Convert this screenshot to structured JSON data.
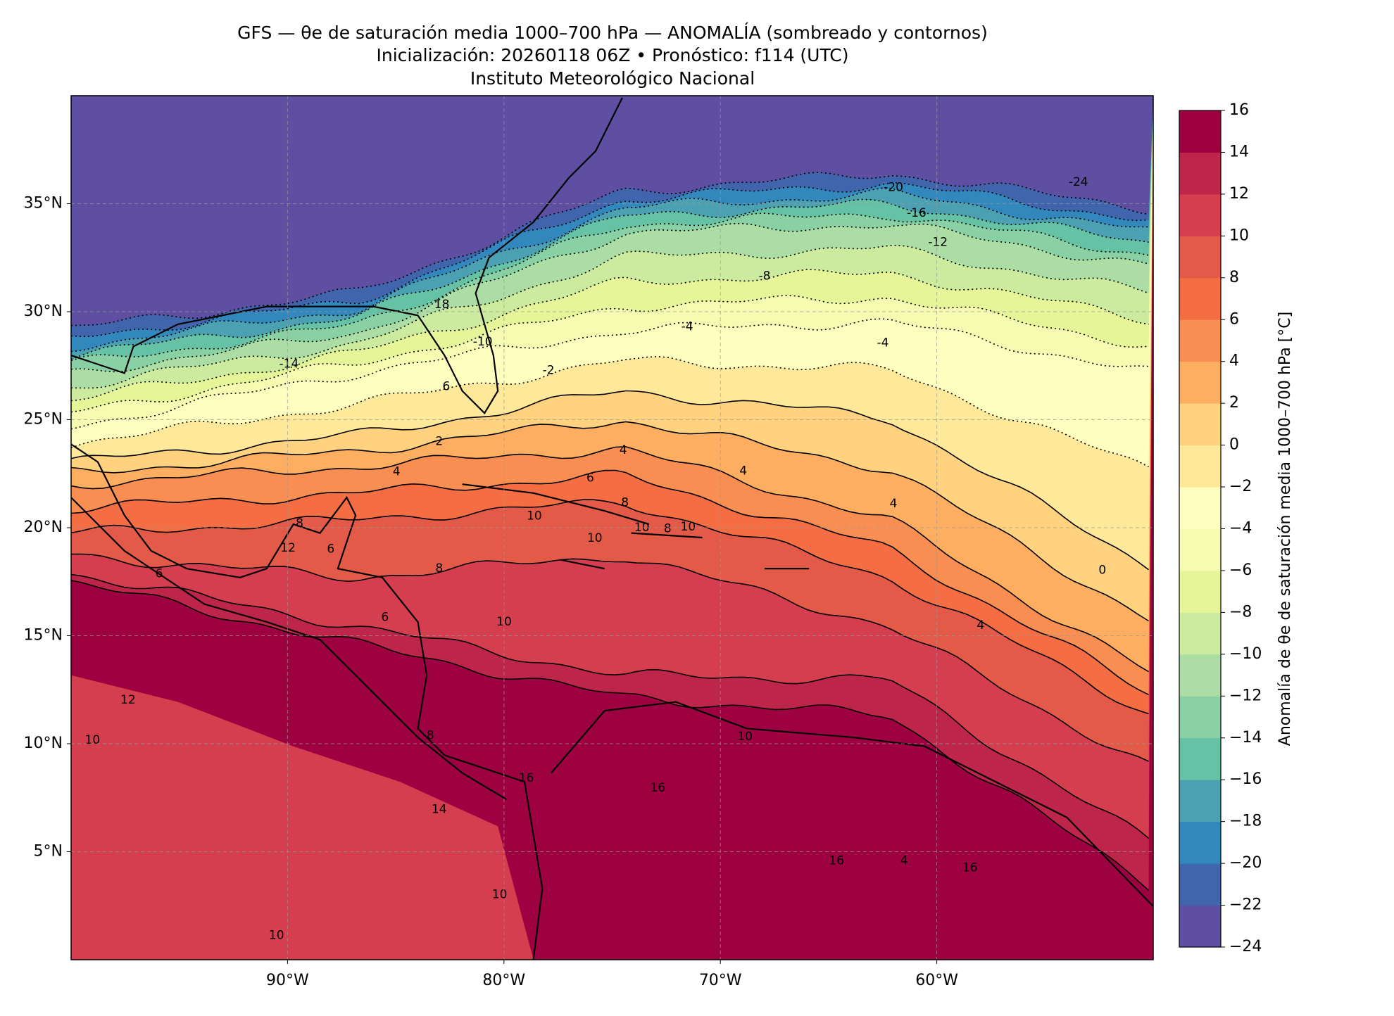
{
  "chart_data": {
    "type": "filled-contour-map",
    "title": "GFS — θe de saturación media 1000–700 hPa — ANOMALÍA (sombreado y contornos)",
    "subtitle": "Inicialización: 20260118 06Z   •   Pronóstico: f114 (UTC)",
    "source": "Instituto Meteorológico Nacional",
    "xlim": [
      -100,
      -50
    ],
    "ylim": [
      0,
      40
    ],
    "xticks": [
      {
        "value": -90,
        "label": "90°W"
      },
      {
        "value": -80,
        "label": "80°W"
      },
      {
        "value": -70,
        "label": "70°W"
      },
      {
        "value": -60,
        "label": "60°W"
      }
    ],
    "yticks": [
      {
        "value": 5,
        "label": "5°N"
      },
      {
        "value": 10,
        "label": "10°N"
      },
      {
        "value": 15,
        "label": "15°N"
      },
      {
        "value": 20,
        "label": "20°N"
      },
      {
        "value": 25,
        "label": "25°N"
      },
      {
        "value": 30,
        "label": "30°N"
      },
      {
        "value": 35,
        "label": "35°N"
      }
    ],
    "grid": true,
    "colorbar": {
      "label": "Anomalía de θe de saturación media 1000–700 hPa [°C]",
      "levels": [
        {
          "value": -24,
          "label": "−24"
        },
        {
          "value": -22,
          "label": "−22"
        },
        {
          "value": -20,
          "label": "−20"
        },
        {
          "value": -18,
          "label": "−18"
        },
        {
          "value": -16,
          "label": "−16"
        },
        {
          "value": -14,
          "label": "−14"
        },
        {
          "value": -12,
          "label": "−12"
        },
        {
          "value": -10,
          "label": "−10"
        },
        {
          "value": -8,
          "label": "−8"
        },
        {
          "value": -6,
          "label": "−6"
        },
        {
          "value": -4,
          "label": "−4"
        },
        {
          "value": -2,
          "label": "−2"
        },
        0,
        2,
        4,
        6,
        8,
        10,
        12,
        14,
        16
      ],
      "colors": [
        "#5e4fa2",
        "#4065ad",
        "#3288bd",
        "#4ba0b1",
        "#66c2a5",
        "#89d0a4",
        "#abdda4",
        "#cdeb9e",
        "#e6f598",
        "#f5fbb1",
        "#fefebe",
        "#fee899",
        "#fed27f",
        "#fdae61",
        "#f98e52",
        "#f46d43",
        "#e45a49",
        "#d53e4f",
        "#be254a",
        "#9e0142"
      ]
    },
    "contour_labels": [
      -20,
      -24,
      -16,
      -12,
      -8,
      -4,
      -4,
      18,
      -10,
      -14,
      -2,
      6,
      2,
      4,
      4,
      6,
      4,
      8,
      4,
      10,
      8,
      10,
      10,
      8,
      10,
      6,
      12,
      8,
      6,
      0,
      10,
      6,
      4,
      12,
      10,
      8,
      16,
      14,
      16,
      10,
      16,
      4,
      16,
      10,
      10
    ]
  }
}
